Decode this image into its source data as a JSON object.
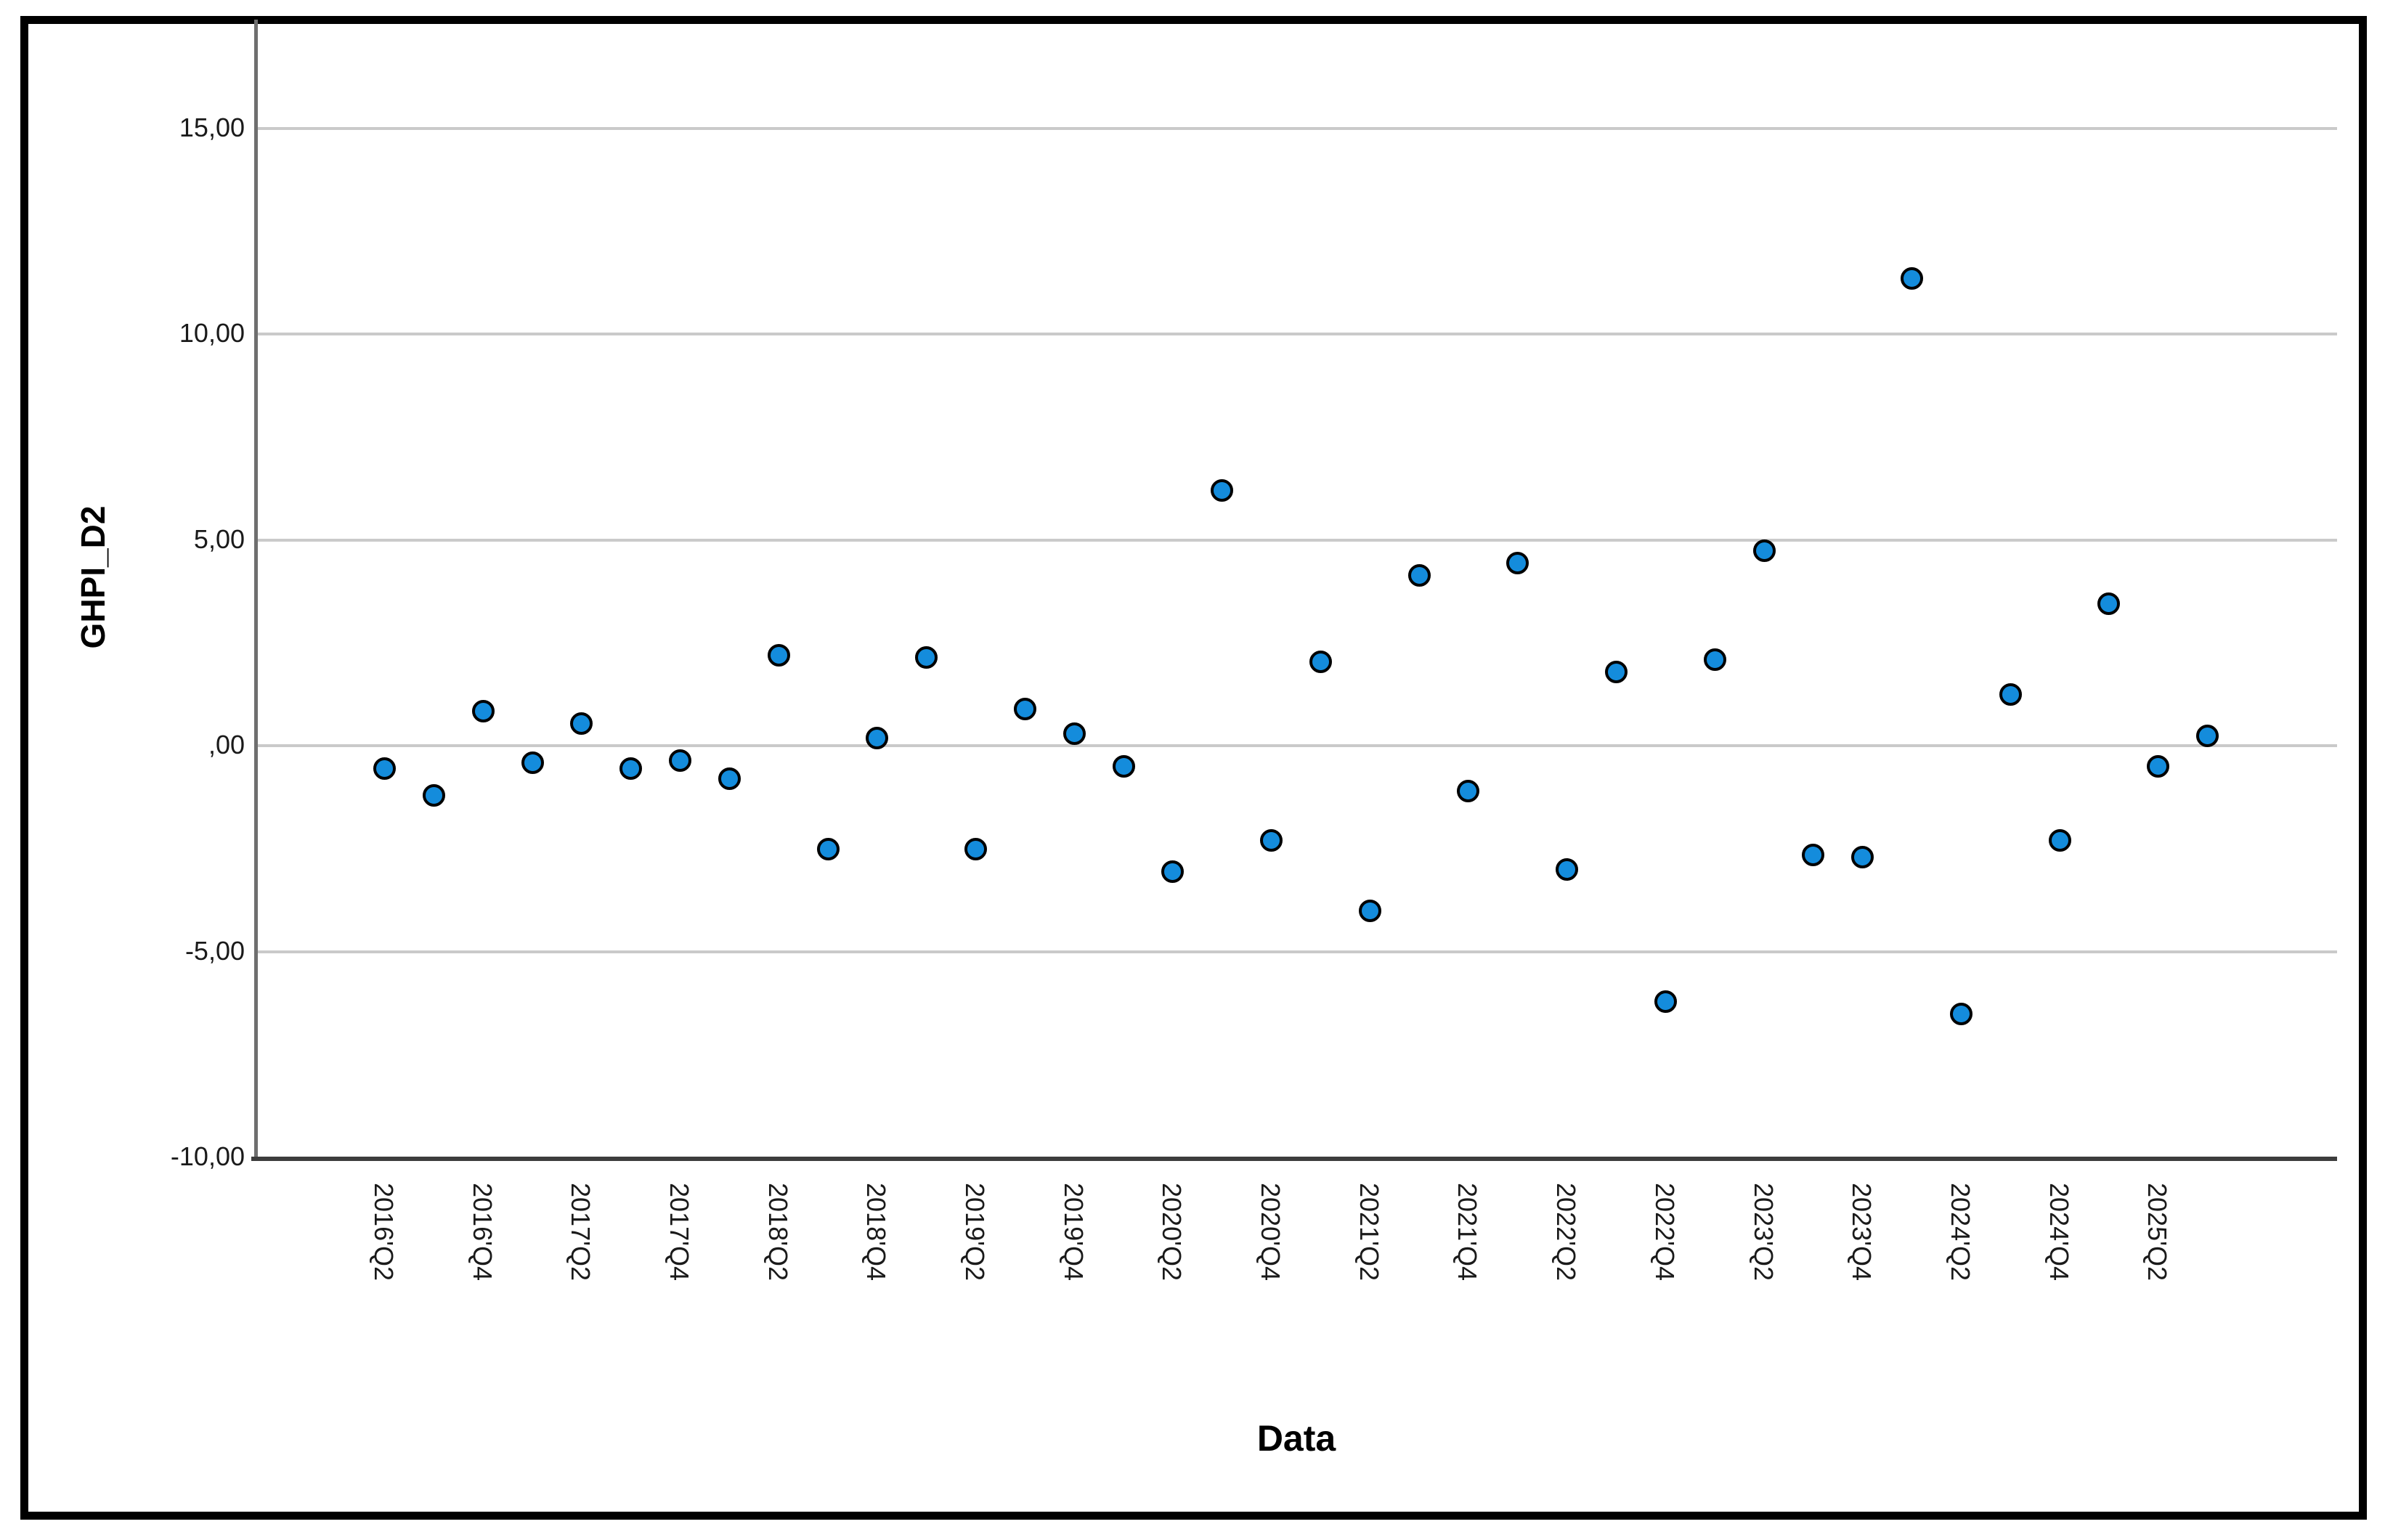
{
  "figure": {
    "background": "#ffffff",
    "border_color": "#000000"
  },
  "chart_data": {
    "type": "scatter",
    "title": "",
    "xlabel": "Data",
    "ylabel": "GHPI_D2",
    "grid": "horizontal-only",
    "legend": "none",
    "marker": {
      "shape": "circle",
      "fill_color": "#148CDC",
      "stroke_color": "#000000"
    },
    "gridline_color": "#cacaca",
    "y_axis": {
      "tick_labels": [
        "15,00",
        "10,00",
        "5,00",
        ",00",
        "-5,00",
        "-10,00"
      ],
      "tick_values": [
        15,
        10,
        5,
        0,
        -5,
        -10
      ],
      "ylim": [
        -10,
        17.6
      ],
      "decimal_style": "comma"
    },
    "x_axis": {
      "tick_labels": [
        "2016'Q2",
        "2016'Q4",
        "2017'Q2",
        "2017'Q4",
        "2018'Q2",
        "2018'Q4",
        "2019'Q2",
        "2019'Q4",
        "2020'Q2",
        "2020'Q4",
        "2021'Q2",
        "2021'Q4",
        "2022'Q2",
        "2022'Q4",
        "2023'Q2",
        "2023'Q4",
        "2024'Q2",
        "2024'Q4",
        "2025'Q2"
      ],
      "tick_every_n_points": 2,
      "label_rotation_deg": 90
    },
    "points": [
      {
        "quarter": "2016'Q2",
        "value": -0.55
      },
      {
        "quarter": "2016'Q3",
        "value": -1.2
      },
      {
        "quarter": "2016'Q4",
        "value": 0.85
      },
      {
        "quarter": "2017'Q1",
        "value": -0.4
      },
      {
        "quarter": "2017'Q2",
        "value": 0.55
      },
      {
        "quarter": "2017'Q3",
        "value": -0.55
      },
      {
        "quarter": "2017'Q4",
        "value": -0.35
      },
      {
        "quarter": "2018'Q1",
        "value": -0.8
      },
      {
        "quarter": "2018'Q2",
        "value": 2.2
      },
      {
        "quarter": "2018'Q3",
        "value": -2.5
      },
      {
        "quarter": "2018'Q4",
        "value": 0.2
      },
      {
        "quarter": "2019'Q1",
        "value": 2.15
      },
      {
        "quarter": "2019'Q2",
        "value": -2.5
      },
      {
        "quarter": "2019'Q3",
        "value": 0.9
      },
      {
        "quarter": "2019'Q4",
        "value": 0.3
      },
      {
        "quarter": "2020'Q1",
        "value": -0.5
      },
      {
        "quarter": "2020'Q2",
        "value": -3.05
      },
      {
        "quarter": "2020'Q3",
        "value": 6.2
      },
      {
        "quarter": "2020'Q4",
        "value": -2.3
      },
      {
        "quarter": "2021'Q1",
        "value": 2.05
      },
      {
        "quarter": "2021'Q2",
        "value": -4.0
      },
      {
        "quarter": "2021'Q3",
        "value": 4.15
      },
      {
        "quarter": "2021'Q4",
        "value": -1.1
      },
      {
        "quarter": "2022'Q1",
        "value": 4.45
      },
      {
        "quarter": "2022'Q2",
        "value": -3.0
      },
      {
        "quarter": "2022'Q3",
        "value": 1.8
      },
      {
        "quarter": "2022'Q4",
        "value": -6.2
      },
      {
        "quarter": "2023'Q1",
        "value": 2.1
      },
      {
        "quarter": "2023'Q2",
        "value": 4.75
      },
      {
        "quarter": "2023'Q3",
        "value": -2.65
      },
      {
        "quarter": "2023'Q4",
        "value": -2.7
      },
      {
        "quarter": "2024'Q1",
        "value": 11.35
      },
      {
        "quarter": "2024'Q2",
        "value": -6.5
      },
      {
        "quarter": "2024'Q3",
        "value": 1.25
      },
      {
        "quarter": "2024'Q4",
        "value": -2.3
      },
      {
        "quarter": "2025'Q1",
        "value": 3.45
      },
      {
        "quarter": "2025'Q2",
        "value": -0.5
      },
      {
        "quarter": "2025'Q3",
        "value": 0.25
      }
    ]
  }
}
